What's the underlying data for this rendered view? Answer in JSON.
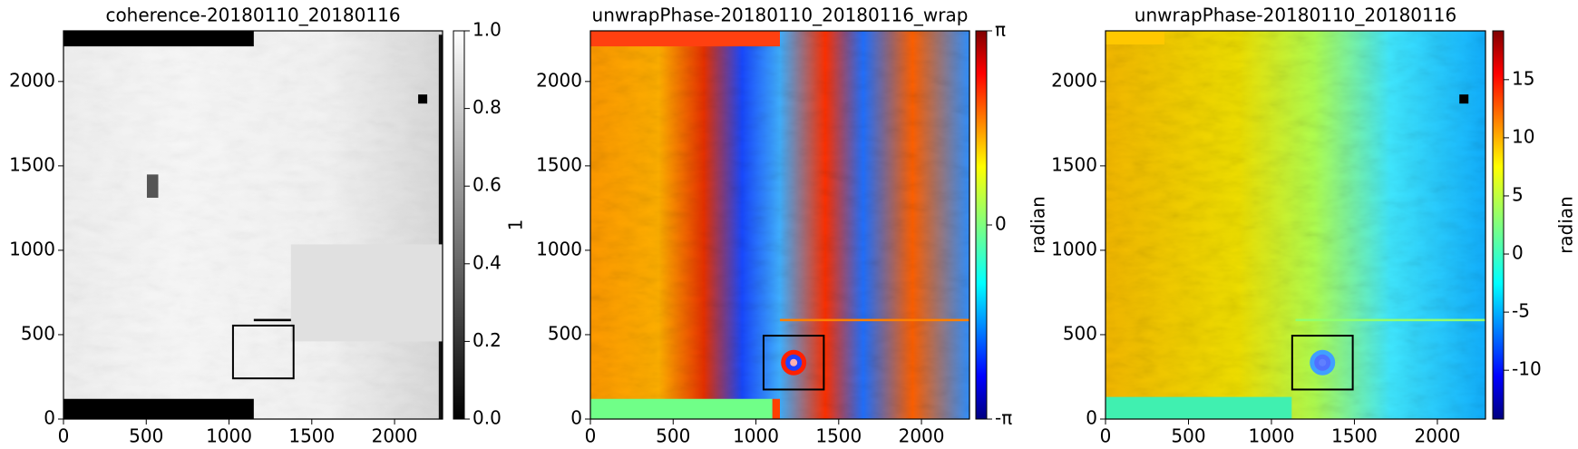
{
  "chart_data": [
    {
      "type": "heatmap",
      "title": "coherence-20180110_20180116",
      "xlim": [
        0,
        2290
      ],
      "ylim": [
        0,
        2300
      ],
      "xticks": [
        0,
        500,
        1000,
        1500,
        2000
      ],
      "yticks": [
        0,
        500,
        1000,
        1500,
        2000
      ],
      "colormap": "gray",
      "clim": [
        0,
        1
      ],
      "cticks": [
        {
          "value": 0,
          "label": "0.0"
        },
        0.2,
        0.4,
        0.6,
        0.8,
        {
          "value": 1,
          "label": "1.0"
        }
      ],
      "clabel": "1",
      "box": {
        "x": [
          1024,
          1390
        ],
        "y": [
          241,
          554
        ]
      },
      "marker": {
        "x": 2170,
        "y": 1896
      }
    },
    {
      "type": "heatmap",
      "title": "unwrapPhase-20180110_20180116_wrap",
      "xlim": [
        0,
        2290
      ],
      "ylim": [
        0,
        2300
      ],
      "xticks": [
        0,
        500,
        1000,
        1500,
        2000
      ],
      "yticks": [
        0,
        500,
        1000,
        1500,
        2000
      ],
      "colormap": "jet",
      "clim": [
        -3.14159,
        3.14159
      ],
      "cticks": [
        {
          "value": -3.14159,
          "label": "-π"
        },
        0,
        {
          "value": 3.14159,
          "label": "π"
        }
      ],
      "clabel": "radian",
      "box": {
        "x": [
          1046,
          1410
        ],
        "y": [
          175,
          494
        ]
      }
    },
    {
      "type": "heatmap",
      "title": "unwrapPhase-20180110_20180116",
      "xlim": [
        0,
        2290
      ],
      "ylim": [
        0,
        2300
      ],
      "xticks": [
        0,
        500,
        1000,
        1500,
        2000
      ],
      "yticks": [
        0,
        500,
        1000,
        1500,
        2000
      ],
      "colormap": "jet",
      "clim": [
        -14.2,
        19.2
      ],
      "cticks": [
        -10,
        -5,
        0,
        5,
        10,
        15
      ],
      "clabel": "radian",
      "box": {
        "x": [
          1125,
          1490
        ],
        "y": [
          175,
          494
        ]
      },
      "marker": {
        "x": 2160,
        "y": 1896
      }
    }
  ]
}
